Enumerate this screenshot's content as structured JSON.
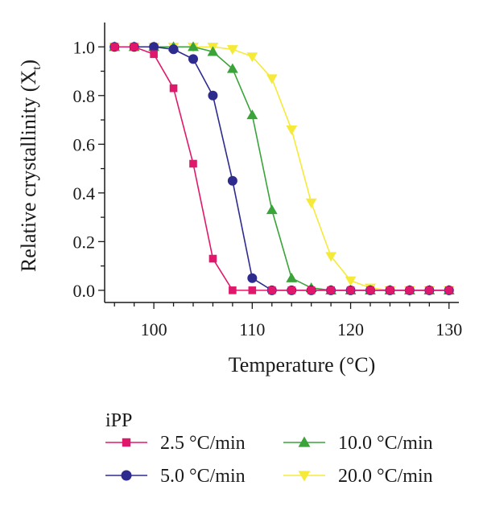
{
  "chart_data": {
    "type": "line",
    "xlabel": "Temperature (°C)",
    "ylabel_main": "Relative crystallinity (X",
    "ylabel_sub": "t",
    "ylabel_close": ")",
    "xlim": [
      95,
      131
    ],
    "ylim": [
      -0.05,
      1.1
    ],
    "xticks": [
      100,
      110,
      120,
      130
    ],
    "xtick_labels": [
      "100",
      "110",
      "120",
      "130"
    ],
    "yticks": [
      0.0,
      0.2,
      0.4,
      0.6,
      0.8,
      1.0
    ],
    "ytick_labels": [
      "0.0",
      "0.2",
      "0.4",
      "0.6",
      "0.8",
      "1.0"
    ],
    "grid": false,
    "legend_title": "iPP",
    "legend_position": "bottom",
    "series": [
      {
        "name": "2.5 °C/min",
        "color": "#e0186c",
        "marker": "square",
        "x": [
          96,
          98,
          100,
          102,
          104,
          106,
          108,
          110,
          112,
          114,
          116,
          118,
          120,
          122,
          124,
          126,
          128,
          130
        ],
        "y": [
          1.0,
          1.0,
          0.97,
          0.83,
          0.52,
          0.13,
          0.0,
          0.0,
          0.0,
          0.0,
          0.0,
          0.0,
          0.0,
          0.0,
          0.0,
          0.0,
          0.0,
          0.0
        ]
      },
      {
        "name": "5.0 °C/min",
        "color": "#2e2b8f",
        "marker": "circle",
        "x": [
          96,
          98,
          100,
          102,
          104,
          106,
          108,
          110,
          112,
          114,
          116,
          118,
          120,
          122,
          124,
          126,
          128,
          130
        ],
        "y": [
          1.0,
          1.0,
          1.0,
          0.99,
          0.95,
          0.8,
          0.45,
          0.05,
          0.0,
          0.0,
          0.0,
          0.0,
          0.0,
          0.0,
          0.0,
          0.0,
          0.0,
          0.0
        ]
      },
      {
        "name": "10.0 °C/min",
        "color": "#3aa33a",
        "marker": "triangle-up",
        "x": [
          96,
          98,
          100,
          102,
          104,
          106,
          108,
          110,
          112,
          114,
          116,
          118,
          120,
          122,
          124,
          126,
          128,
          130
        ],
        "y": [
          1.0,
          1.0,
          1.0,
          1.0,
          1.0,
          0.98,
          0.91,
          0.72,
          0.33,
          0.05,
          0.01,
          0.0,
          0.0,
          0.0,
          0.0,
          0.0,
          0.0,
          0.0
        ]
      },
      {
        "name": "20.0 °C/min",
        "color": "#f5ea3a",
        "marker": "triangle-down",
        "x": [
          96,
          98,
          100,
          102,
          104,
          106,
          108,
          110,
          112,
          114,
          116,
          118,
          120,
          122,
          124,
          126,
          128,
          130
        ],
        "y": [
          1.0,
          1.0,
          1.0,
          1.0,
          1.0,
          1.0,
          0.99,
          0.96,
          0.87,
          0.66,
          0.36,
          0.14,
          0.04,
          0.01,
          0.0,
          0.0,
          0.0,
          0.0
        ]
      }
    ]
  }
}
